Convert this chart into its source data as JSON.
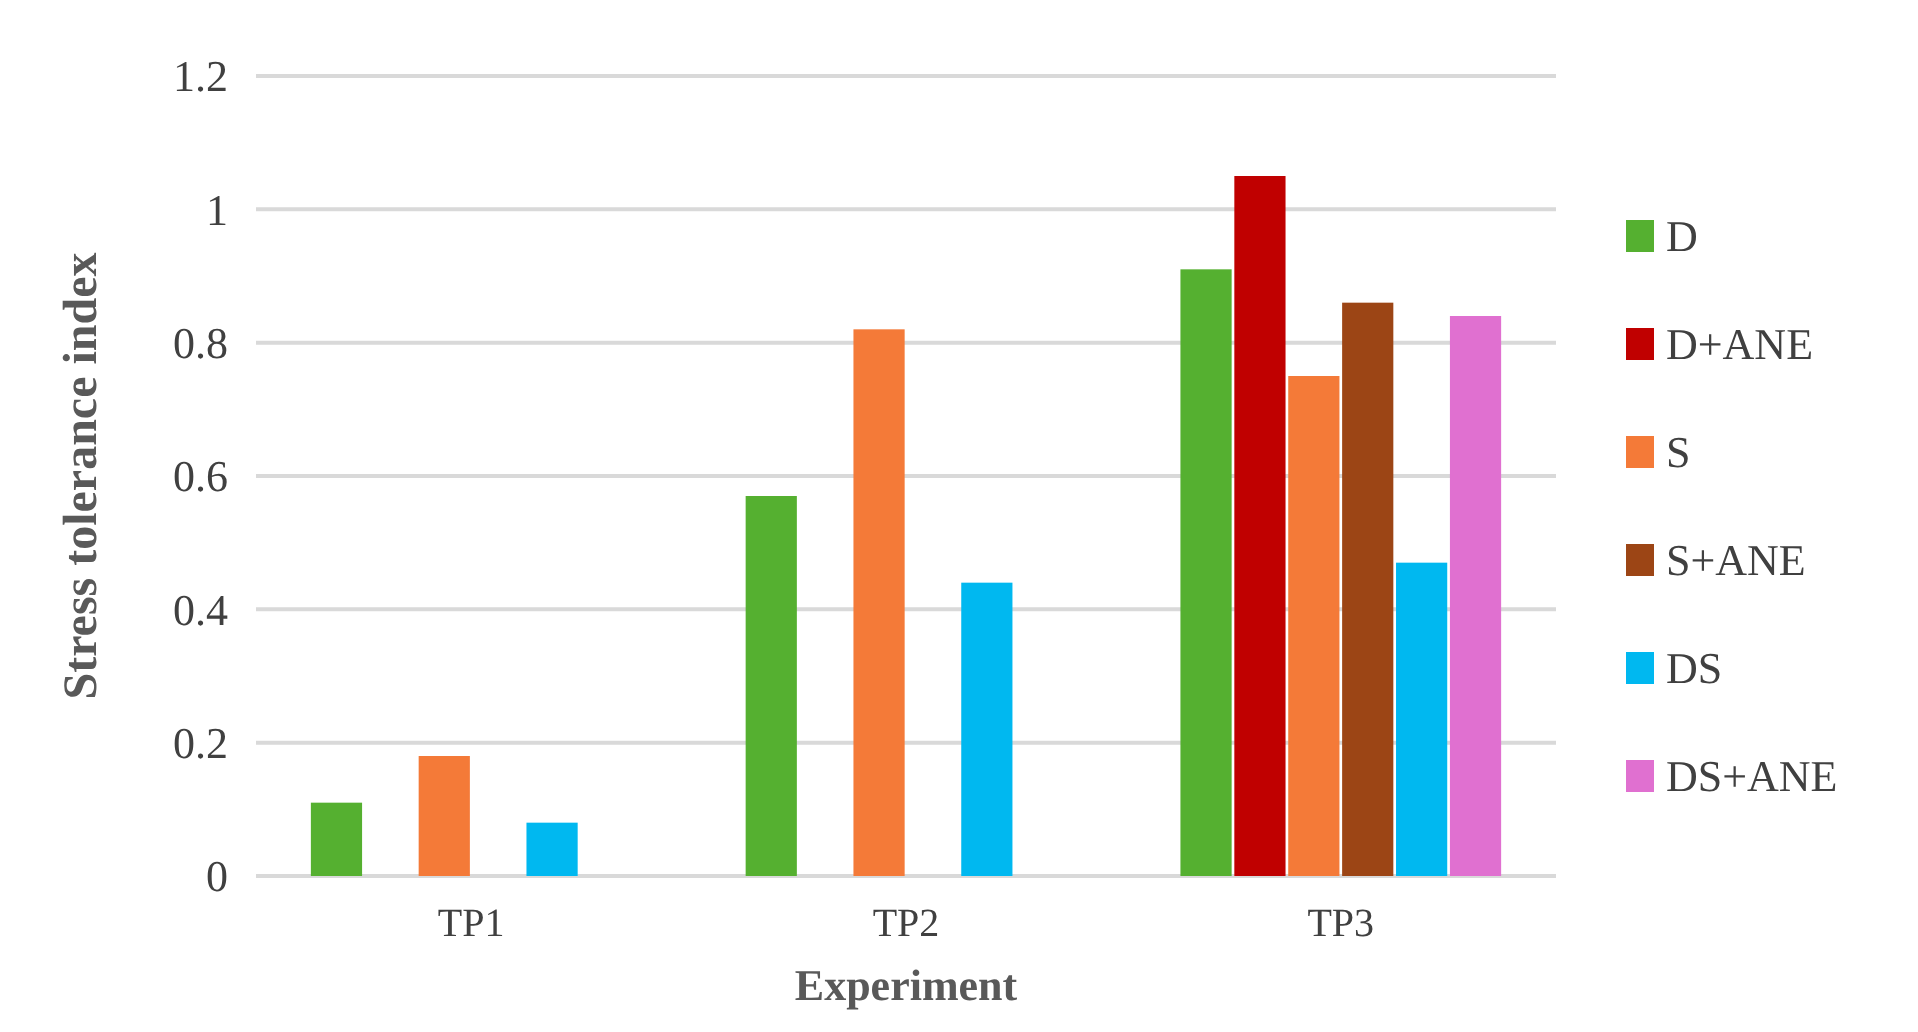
{
  "chart_data": {
    "type": "bar",
    "xlabel": "Experiment",
    "ylabel": "Stress tolerance index",
    "categories": [
      "TP1",
      "TP2",
      "TP3"
    ],
    "series": [
      {
        "name": "D",
        "color": "#55b030",
        "values": [
          0.11,
          0.57,
          0.91
        ]
      },
      {
        "name": "D+ANE",
        "color": "#c00000",
        "values": [
          null,
          null,
          1.05
        ]
      },
      {
        "name": "S",
        "color": "#f47a38",
        "values": [
          0.18,
          0.82,
          0.75
        ]
      },
      {
        "name": "S+ANE",
        "color": "#9c4515",
        "values": [
          null,
          null,
          0.86
        ]
      },
      {
        "name": "DS",
        "color": "#00b8f0",
        "values": [
          0.08,
          0.44,
          0.47
        ]
      },
      {
        "name": "DS+ANE",
        "color": "#e070d0",
        "values": [
          null,
          null,
          0.84
        ]
      }
    ],
    "ylim": [
      0,
      1.2
    ],
    "yticks": [
      0,
      0.2,
      0.4,
      0.6,
      0.8,
      1,
      1.2
    ],
    "grid": "y",
    "legend": "right"
  }
}
